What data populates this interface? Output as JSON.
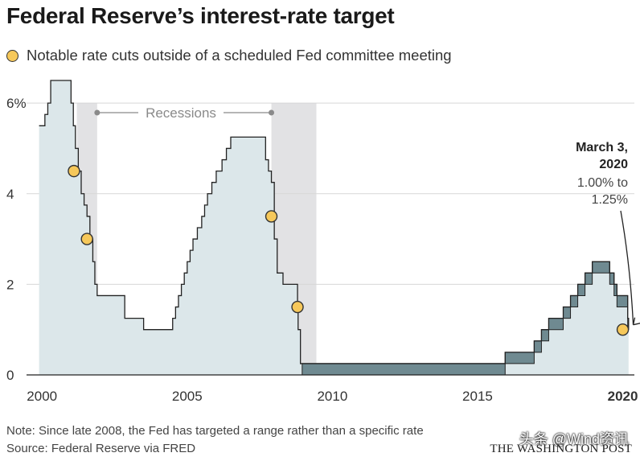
{
  "title": "Federal Reserve’s interest-rate target",
  "legend": {
    "label": "Notable rate cuts outside of a scheduled Fed committee meeting"
  },
  "colors": {
    "fill": "#dce7ea",
    "line": "#222222",
    "range_band": "#6f8a91",
    "recession": "#e2e2e4",
    "dot": "#f6c85a",
    "gridline": "#d7d7d7"
  },
  "chart_data": {
    "type": "area",
    "title": "Federal Reserve’s interest-rate target",
    "xlabel": "",
    "ylabel": "",
    "xlim": [
      1999.8,
      2020.4
    ],
    "ylim": [
      0,
      6.5
    ],
    "x_ticks": [
      {
        "value": 2000,
        "label": "2000",
        "bold": false
      },
      {
        "value": 2005,
        "label": "2005",
        "bold": false
      },
      {
        "value": 2010,
        "label": "2010",
        "bold": false
      },
      {
        "value": 2015,
        "label": "2015",
        "bold": false
      },
      {
        "value": 2020,
        "label": "2020",
        "bold": true
      }
    ],
    "y_ticks": [
      {
        "value": 0,
        "label": "0"
      },
      {
        "value": 2,
        "label": "2"
      },
      {
        "value": 4,
        "label": "4"
      },
      {
        "value": 6,
        "label": "6%"
      }
    ],
    "recessions": [
      {
        "start": 2001.2,
        "end": 2001.9
      },
      {
        "start": 2007.9,
        "end": 2009.45
      }
    ],
    "recessions_label": "Recessions",
    "rate_series": [
      [
        1999.9,
        5.5
      ],
      [
        2000.1,
        5.75
      ],
      [
        2000.2,
        6.0
      ],
      [
        2000.3,
        6.5
      ],
      [
        2001.0,
        6.0
      ],
      [
        2001.08,
        5.5
      ],
      [
        2001.15,
        5.0
      ],
      [
        2001.25,
        4.5
      ],
      [
        2001.35,
        4.0
      ],
      [
        2001.45,
        3.75
      ],
      [
        2001.55,
        3.5
      ],
      [
        2001.65,
        3.0
      ],
      [
        2001.75,
        2.5
      ],
      [
        2001.82,
        2.0
      ],
      [
        2001.9,
        1.75
      ],
      [
        2002.85,
        1.25
      ],
      [
        2003.5,
        1.0
      ],
      [
        2004.5,
        1.25
      ],
      [
        2004.6,
        1.5
      ],
      [
        2004.7,
        1.75
      ],
      [
        2004.8,
        2.0
      ],
      [
        2004.9,
        2.25
      ],
      [
        2005.0,
        2.5
      ],
      [
        2005.1,
        2.75
      ],
      [
        2005.2,
        3.0
      ],
      [
        2005.35,
        3.25
      ],
      [
        2005.5,
        3.5
      ],
      [
        2005.6,
        3.75
      ],
      [
        2005.7,
        4.0
      ],
      [
        2005.85,
        4.25
      ],
      [
        2006.0,
        4.5
      ],
      [
        2006.2,
        4.75
      ],
      [
        2006.35,
        5.0
      ],
      [
        2006.5,
        5.25
      ],
      [
        2007.7,
        4.75
      ],
      [
        2007.8,
        4.5
      ],
      [
        2007.9,
        4.25
      ],
      [
        2008.0,
        3.0
      ],
      [
        2008.1,
        2.25
      ],
      [
        2008.3,
        2.0
      ],
      [
        2008.8,
        1.5
      ],
      [
        2008.82,
        1.0
      ],
      [
        2008.9,
        0.25
      ],
      [
        2015.95,
        0.5
      ],
      [
        2016.95,
        0.75
      ],
      [
        2017.2,
        1.0
      ],
      [
        2017.45,
        1.25
      ],
      [
        2017.95,
        1.5
      ],
      [
        2018.2,
        1.75
      ],
      [
        2018.45,
        2.0
      ],
      [
        2018.7,
        2.25
      ],
      [
        2018.95,
        2.5
      ],
      [
        2019.55,
        2.25
      ],
      [
        2019.7,
        2.0
      ],
      [
        2019.8,
        1.75
      ],
      [
        2020.17,
        1.25
      ],
      [
        2020.2,
        1.0
      ]
    ],
    "range_period": {
      "start": 2008.96,
      "end": 2020.2
    },
    "emergency_cuts": [
      {
        "x": 2001.1,
        "y": 4.5
      },
      {
        "x": 2001.55,
        "y": 3.0
      },
      {
        "x": 2007.9,
        "y": 3.5
      },
      {
        "x": 2008.8,
        "y": 1.5
      },
      {
        "x": 2020.0,
        "y": 1.0
      }
    ],
    "annotation": {
      "date": "March 3,",
      "year": "2020",
      "change_line1": "1.00% to",
      "change_line2": "1.25%"
    }
  },
  "footer": {
    "note": "Note: Since late 2008, the Fed has targeted a range rather than a specific rate",
    "source": "Source: Federal Reserve via FRED",
    "brand": "THE WASHINGTON POST",
    "watermark": "头条 @Wind资讯"
  }
}
